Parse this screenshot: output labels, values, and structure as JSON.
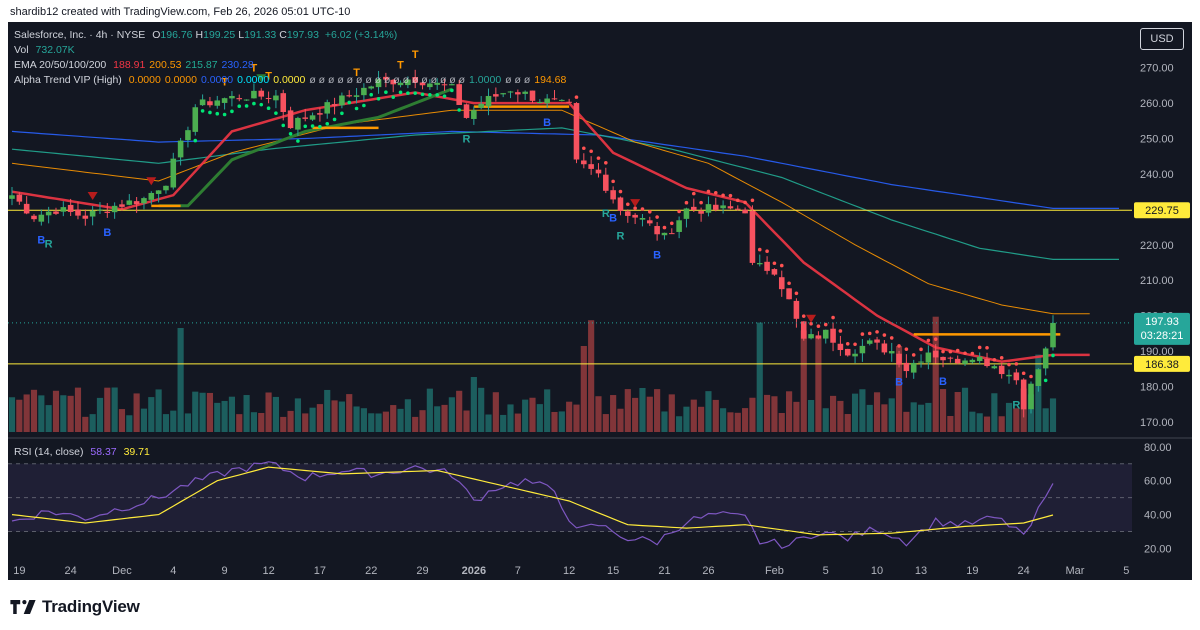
{
  "header": {
    "credit": "shardib12 created with TradingView.com, Feb 26, 2026 05:01 UTC-10"
  },
  "legend": {
    "symbol": "Salesforce, Inc. · 4h · NYSE",
    "ohlc": [
      {
        "k": "O",
        "v": "196.76"
      },
      {
        "k": "H",
        "v": "199.25"
      },
      {
        "k": "L",
        "v": "191.33"
      },
      {
        "k": "C",
        "v": "197.93"
      }
    ],
    "change": "+6.02 (+3.14%)",
    "vol_label": "Vol",
    "vol_value": "732.07K",
    "ema_label": "EMA 20/50/100/200",
    "ema_values": [
      {
        "v": "188.91",
        "color": "#f23645"
      },
      {
        "v": "200.53",
        "color": "#ff9800"
      },
      {
        "v": "215.87",
        "color": "#22ab94"
      },
      {
        "v": "230.28",
        "color": "#2962ff"
      }
    ],
    "alpha_label": "Alpha Trend VIP (High)",
    "alpha_values": [
      "0.0000",
      "0.0000",
      "0.0000",
      "0.0000",
      "0.0000"
    ],
    "alpha_colors": [
      "#ff9800",
      "#ff9800",
      "#2962ff",
      "#00e5ff",
      "#ffeb3b"
    ],
    "alpha_more": "1.0000",
    "alpha_last": "194.68"
  },
  "rsi_legend": {
    "label": "RSI (14, close)",
    "value": "58.37",
    "ma_value": "39.71"
  },
  "currency": "USD",
  "footer": {
    "brand": "TradingView"
  },
  "chart_data": {
    "type": "candlestick",
    "symbol": "Salesforce, Inc.",
    "interval": "4h",
    "exchange": "NYSE",
    "price_axis": {
      "ticks": [
        170,
        180,
        190,
        200,
        210,
        220,
        230,
        240,
        250,
        260,
        270
      ],
      "range": [
        166,
        275
      ]
    },
    "rsi_axis": {
      "ticks": [
        20,
        40,
        60,
        80
      ],
      "range": [
        12,
        84
      ],
      "bands": [
        30,
        50,
        70
      ]
    },
    "x_axis": {
      "labels": [
        {
          "t": "19",
          "i": 1
        },
        {
          "t": "24",
          "i": 8
        },
        {
          "t": "Dec",
          "i": 15
        },
        {
          "t": "4",
          "i": 22
        },
        {
          "t": "9",
          "i": 29
        },
        {
          "t": "12",
          "i": 35
        },
        {
          "t": "17",
          "i": 42
        },
        {
          "t": "22",
          "i": 49
        },
        {
          "t": "29",
          "i": 56
        },
        {
          "t": "2026",
          "i": 63
        },
        {
          "t": "7",
          "i": 69
        },
        {
          "t": "12",
          "i": 76
        },
        {
          "t": "15",
          "i": 82
        },
        {
          "t": "21",
          "i": 89
        },
        {
          "t": "26",
          "i": 95
        },
        {
          "t": "Feb",
          "i": 104
        },
        {
          "t": "5",
          "i": 111
        },
        {
          "t": "10",
          "i": 118
        },
        {
          "t": "13",
          "i": 124
        },
        {
          "t": "19",
          "i": 131
        },
        {
          "t": "24",
          "i": 138
        },
        {
          "t": "Mar",
          "i": 145
        },
        {
          "t": "5",
          "i": 152
        }
      ],
      "bold": [
        "2026"
      ]
    },
    "horizontal_levels": [
      {
        "price": 229.75,
        "label": "229.75",
        "color": "#ffeb3b"
      },
      {
        "price": 186.38,
        "label": "186.38",
        "color": "#ffeb3b"
      }
    ],
    "last_price": {
      "price": "197.93",
      "countdown": "03:28:21",
      "color": "#26a69a"
    },
    "ohlc_anchors": [
      {
        "i": 0,
        "c": 234
      },
      {
        "i": 3,
        "c": 228
      },
      {
        "i": 6,
        "c": 230
      },
      {
        "i": 10,
        "c": 228
      },
      {
        "i": 14,
        "c": 231
      },
      {
        "i": 18,
        "c": 233
      },
      {
        "i": 21,
        "c": 238
      },
      {
        "i": 23,
        "c": 248
      },
      {
        "i": 25,
        "c": 259
      },
      {
        "i": 28,
        "c": 261
      },
      {
        "i": 32,
        "c": 262
      },
      {
        "i": 36,
        "c": 262
      },
      {
        "i": 38,
        "c": 254
      },
      {
        "i": 42,
        "c": 258
      },
      {
        "i": 46,
        "c": 262
      },
      {
        "i": 50,
        "c": 266
      },
      {
        "i": 55,
        "c": 267
      },
      {
        "i": 60,
        "c": 264
      },
      {
        "i": 62,
        "c": 256
      },
      {
        "i": 64,
        "c": 260
      },
      {
        "i": 68,
        "c": 264
      },
      {
        "i": 72,
        "c": 261
      },
      {
        "i": 76,
        "c": 259
      },
      {
        "i": 77,
        "c": 243
      },
      {
        "i": 80,
        "c": 240
      },
      {
        "i": 83,
        "c": 230
      },
      {
        "i": 86,
        "c": 227
      },
      {
        "i": 89,
        "c": 222
      },
      {
        "i": 92,
        "c": 230
      },
      {
        "i": 96,
        "c": 230
      },
      {
        "i": 100,
        "c": 230
      },
      {
        "i": 101,
        "c": 214
      },
      {
        "i": 104,
        "c": 213
      },
      {
        "i": 106,
        "c": 204
      },
      {
        "i": 108,
        "c": 193
      },
      {
        "i": 111,
        "c": 195
      },
      {
        "i": 114,
        "c": 190
      },
      {
        "i": 117,
        "c": 192
      },
      {
        "i": 120,
        "c": 190
      },
      {
        "i": 122,
        "c": 185
      },
      {
        "i": 125,
        "c": 190
      },
      {
        "i": 128,
        "c": 187
      },
      {
        "i": 131,
        "c": 189
      },
      {
        "i": 134,
        "c": 186
      },
      {
        "i": 137,
        "c": 182
      },
      {
        "i": 138,
        "c": 175
      },
      {
        "i": 140,
        "c": 185
      },
      {
        "i": 141,
        "c": 190
      },
      {
        "i": 142,
        "c": 197.93
      }
    ],
    "ema_anchors": {
      "ema20": [
        {
          "i": 0,
          "v": 235
        },
        {
          "i": 15,
          "v": 230
        },
        {
          "i": 22,
          "v": 234
        },
        {
          "i": 30,
          "v": 252
        },
        {
          "i": 40,
          "v": 258
        },
        {
          "i": 55,
          "v": 263
        },
        {
          "i": 63,
          "v": 260
        },
        {
          "i": 76,
          "v": 260
        },
        {
          "i": 82,
          "v": 246
        },
        {
          "i": 92,
          "v": 236
        },
        {
          "i": 100,
          "v": 232
        },
        {
          "i": 108,
          "v": 215
        },
        {
          "i": 118,
          "v": 200
        },
        {
          "i": 126,
          "v": 191
        },
        {
          "i": 135,
          "v": 187
        },
        {
          "i": 142,
          "v": 188.91
        }
      ],
      "ema50": [
        {
          "i": 0,
          "v": 243
        },
        {
          "i": 20,
          "v": 238
        },
        {
          "i": 30,
          "v": 246
        },
        {
          "i": 45,
          "v": 254
        },
        {
          "i": 60,
          "v": 258
        },
        {
          "i": 75,
          "v": 258
        },
        {
          "i": 85,
          "v": 249
        },
        {
          "i": 95,
          "v": 243
        },
        {
          "i": 105,
          "v": 232
        },
        {
          "i": 115,
          "v": 220
        },
        {
          "i": 125,
          "v": 209
        },
        {
          "i": 135,
          "v": 203
        },
        {
          "i": 142,
          "v": 200.53
        }
      ],
      "ema100": [
        {
          "i": 0,
          "v": 247
        },
        {
          "i": 20,
          "v": 243
        },
        {
          "i": 35,
          "v": 247
        },
        {
          "i": 55,
          "v": 251
        },
        {
          "i": 75,
          "v": 253
        },
        {
          "i": 90,
          "v": 247
        },
        {
          "i": 105,
          "v": 239
        },
        {
          "i": 120,
          "v": 227
        },
        {
          "i": 132,
          "v": 219
        },
        {
          "i": 142,
          "v": 215.87
        }
      ],
      "ema200": [
        {
          "i": 0,
          "v": 252
        },
        {
          "i": 20,
          "v": 249
        },
        {
          "i": 40,
          "v": 250
        },
        {
          "i": 60,
          "v": 252
        },
        {
          "i": 80,
          "v": 251
        },
        {
          "i": 100,
          "v": 245
        },
        {
          "i": 120,
          "v": 237
        },
        {
          "i": 142,
          "v": 230.28
        }
      ]
    },
    "alpha_trend_anchors": [
      {
        "i": 0,
        "v": 232,
        "color": "#ffeb3b"
      },
      {
        "i": 20,
        "v": 231,
        "color": "#ffeb3b"
      },
      {
        "i": 24,
        "v": 231,
        "color": "#2e7d32"
      },
      {
        "i": 30,
        "v": 244,
        "color": "#2e7d32"
      },
      {
        "i": 40,
        "v": 252,
        "color": "#2e7d32"
      },
      {
        "i": 50,
        "v": 256,
        "color": "#2e7d32"
      },
      {
        "i": 60,
        "v": 264,
        "color": "#2e7d32"
      }
    ],
    "rsi_anchors": [
      {
        "i": 0,
        "v": 36
      },
      {
        "i": 5,
        "v": 42
      },
      {
        "i": 10,
        "v": 38
      },
      {
        "i": 15,
        "v": 44
      },
      {
        "i": 20,
        "v": 50
      },
      {
        "i": 24,
        "v": 58
      },
      {
        "i": 30,
        "v": 66
      },
      {
        "i": 35,
        "v": 70
      },
      {
        "i": 40,
        "v": 62
      },
      {
        "i": 45,
        "v": 66
      },
      {
        "i": 50,
        "v": 64
      },
      {
        "i": 55,
        "v": 68
      },
      {
        "i": 60,
        "v": 64
      },
      {
        "i": 63,
        "v": 48
      },
      {
        "i": 66,
        "v": 56
      },
      {
        "i": 70,
        "v": 60
      },
      {
        "i": 74,
        "v": 54
      },
      {
        "i": 77,
        "v": 30
      },
      {
        "i": 80,
        "v": 34
      },
      {
        "i": 84,
        "v": 26
      },
      {
        "i": 88,
        "v": 24
      },
      {
        "i": 92,
        "v": 36
      },
      {
        "i": 96,
        "v": 40
      },
      {
        "i": 100,
        "v": 38
      },
      {
        "i": 102,
        "v": 24
      },
      {
        "i": 106,
        "v": 22
      },
      {
        "i": 110,
        "v": 30
      },
      {
        "i": 114,
        "v": 26
      },
      {
        "i": 118,
        "v": 32
      },
      {
        "i": 122,
        "v": 24
      },
      {
        "i": 126,
        "v": 36
      },
      {
        "i": 130,
        "v": 34
      },
      {
        "i": 134,
        "v": 38
      },
      {
        "i": 137,
        "v": 32
      },
      {
        "i": 138,
        "v": 26
      },
      {
        "i": 140,
        "v": 42
      },
      {
        "i": 142,
        "v": 58.37
      }
    ],
    "rsi_ma_anchors": [
      {
        "i": 0,
        "v": 40
      },
      {
        "i": 10,
        "v": 35
      },
      {
        "i": 20,
        "v": 40
      },
      {
        "i": 28,
        "v": 60
      },
      {
        "i": 35,
        "v": 68
      },
      {
        "i": 45,
        "v": 64
      },
      {
        "i": 58,
        "v": 66
      },
      {
        "i": 66,
        "v": 58
      },
      {
        "i": 76,
        "v": 48
      },
      {
        "i": 84,
        "v": 34
      },
      {
        "i": 92,
        "v": 32
      },
      {
        "i": 100,
        "v": 34
      },
      {
        "i": 110,
        "v": 28
      },
      {
        "i": 120,
        "v": 29
      },
      {
        "i": 130,
        "v": 33
      },
      {
        "i": 138,
        "v": 35
      },
      {
        "i": 142,
        "v": 39.71
      }
    ],
    "signal_labels": [
      {
        "t": "B",
        "i": 4,
        "color": "#2962ff"
      },
      {
        "t": "R",
        "i": 5,
        "color": "#26a69a"
      },
      {
        "t": "B",
        "i": 13,
        "color": "#2962ff"
      },
      {
        "t": "R",
        "i": 62,
        "color": "#26a69a"
      },
      {
        "t": "B",
        "i": 73,
        "color": "#2962ff"
      },
      {
        "t": "R",
        "i": 81,
        "color": "#26a69a"
      },
      {
        "t": "B",
        "i": 82,
        "color": "#2962ff"
      },
      {
        "t": "R",
        "i": 83,
        "color": "#26a69a"
      },
      {
        "t": "B",
        "i": 88,
        "color": "#2962ff"
      },
      {
        "t": "B",
        "i": 121,
        "color": "#2962ff"
      },
      {
        "t": "B",
        "i": 127,
        "color": "#2962ff"
      },
      {
        "t": "R",
        "i": 137,
        "color": "#26a69a"
      },
      {
        "t": "T",
        "i": 33,
        "color": "#ff9800"
      },
      {
        "t": "T",
        "i": 35,
        "color": "#ff9800"
      },
      {
        "t": "T",
        "i": 47,
        "color": "#ff9800"
      },
      {
        "t": "T",
        "i": 53,
        "color": "#ff9800"
      },
      {
        "t": "T",
        "i": 55,
        "color": "#ff9800"
      },
      {
        "t": "T",
        "i": 29,
        "color": "#ff9800"
      }
    ]
  }
}
